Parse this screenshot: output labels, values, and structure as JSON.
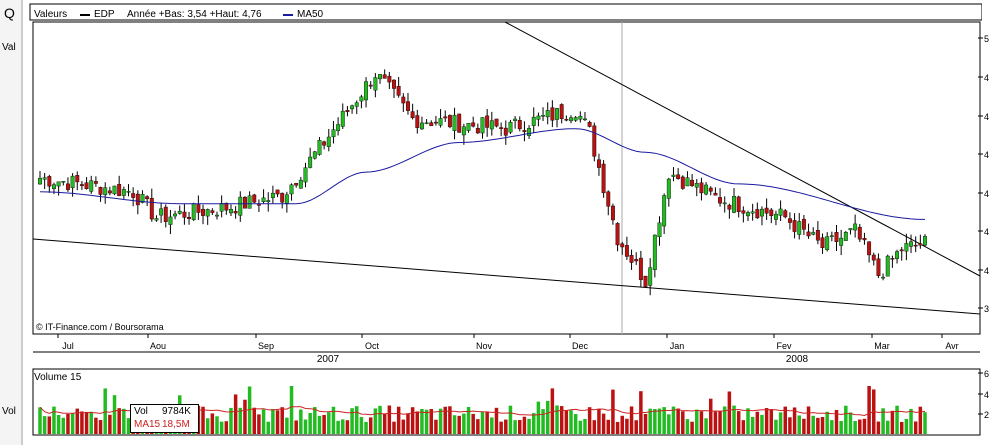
{
  "header": {
    "label": "Valeurs",
    "ticker": "EDP",
    "range_text": "Année +Bas: 3,54 +Haut: 4,76",
    "ma_label": "MA50"
  },
  "left_panel": {
    "search_glyph": "Q",
    "values_label": "Val",
    "volume_label": "Vol"
  },
  "footer": {
    "copyright": "© IT-Finance.com / Boursorama"
  },
  "volume_panel": {
    "title": "Volume 15",
    "vol_label": "Vol",
    "vol_value": "9784K",
    "ma15_label": "MA15",
    "ma15_value": "18,5M",
    "right_axis_visible": [
      "6",
      "4",
      "2"
    ]
  },
  "colors": {
    "up": "#22bb22",
    "down": "#bb1111",
    "ma50": "#1a1aa0",
    "ma15": "#cc2222",
    "grid": "#dddddd",
    "trend": "#000000"
  },
  "chart_data": {
    "type": "candlestick",
    "ticker": "EDP",
    "months": [
      "Jul",
      "Aou",
      "Sep",
      "Oct",
      "Nov",
      "Dec",
      "Jan",
      "Fev",
      "Mar",
      "Avr"
    ],
    "years": [
      "2007",
      "2008"
    ],
    "year_low": 3.54,
    "year_high": 4.76,
    "price_axis_ticks_visible": [
      "5",
      "4",
      "4",
      "4",
      "4",
      "4",
      "4",
      "3",
      "3"
    ],
    "series": [
      {
        "name": "EDP",
        "kind": "ohlc",
        "key_points": [
          [
            0,
            4.15
          ],
          [
            20,
            4.08
          ],
          [
            25,
            3.95
          ],
          [
            40,
            4.0
          ],
          [
            52,
            4.06
          ],
          [
            60,
            4.3
          ],
          [
            72,
            4.68
          ],
          [
            80,
            4.45
          ],
          [
            100,
            4.4
          ],
          [
            115,
            4.5
          ],
          [
            118,
            4.38
          ],
          [
            124,
            3.85
          ],
          [
            130,
            3.63
          ],
          [
            135,
            4.18
          ],
          [
            145,
            4.05
          ],
          [
            160,
            3.95
          ],
          [
            168,
            3.8
          ],
          [
            175,
            3.88
          ],
          [
            180,
            3.66
          ],
          [
            185,
            3.79
          ],
          [
            190,
            3.82
          ]
        ]
      },
      {
        "name": "MA50",
        "values_at": [
          [
            0,
            4.08
          ],
          [
            30,
            4.02
          ],
          [
            55,
            4.02
          ],
          [
            70,
            4.18
          ],
          [
            90,
            4.33
          ],
          [
            115,
            4.4
          ],
          [
            130,
            4.28
          ],
          [
            150,
            4.12
          ],
          [
            190,
            3.94
          ]
        ]
      }
    ],
    "volume": {
      "title": "Volume 15",
      "latest_volume": "9784K",
      "ma15_latest": "18,5M"
    }
  }
}
